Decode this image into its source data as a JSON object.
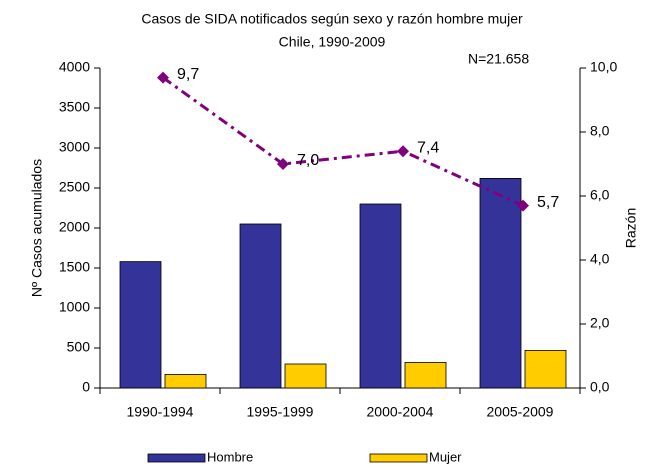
{
  "chart_data": {
    "type": "bar",
    "title": "Casos de SIDA notificados según sexo y razón hombre mujer",
    "subtitle": "Chile, 1990-2009",
    "annotation": "N=21.658",
    "y_label": "Nº Casos acumulados",
    "y2_label": "Razón",
    "categories": [
      "1990-1994",
      "1995-1999",
      "2000-2004",
      "2005-2009"
    ],
    "series": [
      {
        "name": "Hombre",
        "color": "#333399",
        "values": [
          1580,
          2050,
          2300,
          2620
        ]
      },
      {
        "name": "Mujer",
        "color": "#ffcc00",
        "values": [
          170,
          300,
          320,
          470
        ]
      },
      {
        "type": "line",
        "axis": "y2",
        "color": "#800080",
        "values": [
          9.7,
          7.0,
          7.4,
          5.7
        ],
        "value_labels": [
          "9,7",
          "7,0",
          "7,4",
          "5,7"
        ]
      }
    ],
    "ylim": [
      0,
      4000
    ],
    "yticks": [
      0,
      500,
      1000,
      1500,
      2000,
      2500,
      3000,
      3500,
      4000
    ],
    "y2lim": [
      0,
      10
    ],
    "y2ticks": [
      {
        "value": 0,
        "label": "0,0"
      },
      {
        "value": 2,
        "label": "2,0"
      },
      {
        "value": 4,
        "label": "4,0"
      },
      {
        "value": 6,
        "label": "6,0"
      },
      {
        "value": 8,
        "label": "8,0"
      },
      {
        "value": 10,
        "label": "10,0"
      }
    ],
    "grid": false,
    "legend": "bottom"
  }
}
